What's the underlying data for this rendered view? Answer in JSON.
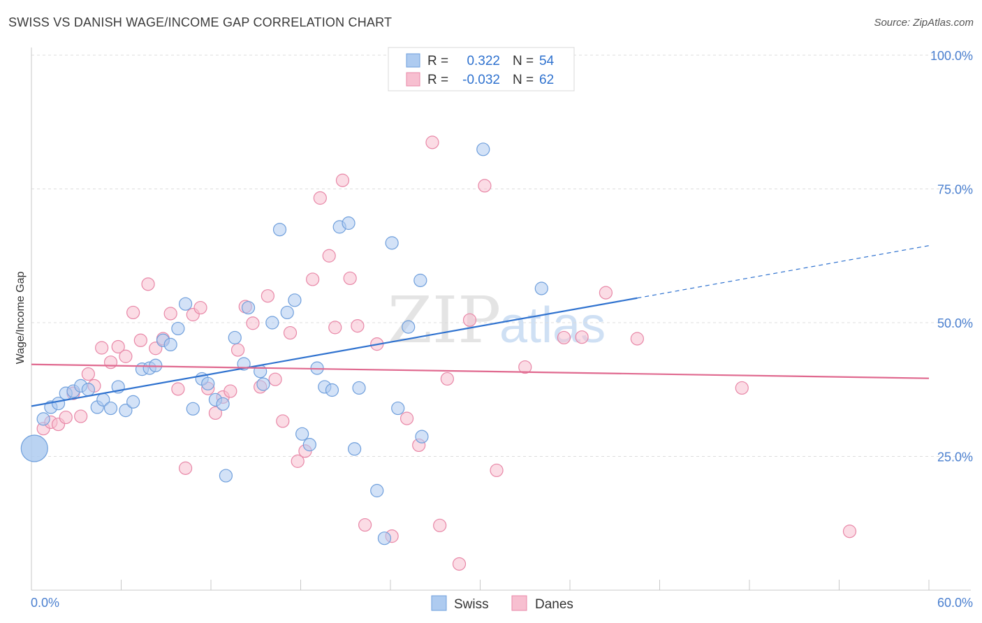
{
  "header": {
    "title": "SWISS VS DANISH WAGE/INCOME GAP CORRELATION CHART",
    "source": "Source: ZipAtlas.com"
  },
  "watermark": {
    "part1": "ZIP",
    "part2": "atlas"
  },
  "legend": {
    "swiss": {
      "r_label": "R =",
      "r_value": "0.322",
      "n_label": "N =",
      "n_value": "54"
    },
    "danes": {
      "r_label": "R =",
      "r_value": "-0.032",
      "n_label": "N =",
      "n_value": "62"
    }
  },
  "bottom_legend": {
    "swiss": "Swiss",
    "danes": "Danes"
  },
  "colors": {
    "swiss_fill": "#aecbf0",
    "swiss_stroke": "#6f9fdc",
    "swiss_line": "#2f72cf",
    "danes_fill": "#f7bfd0",
    "danes_stroke": "#e887a7",
    "danes_line": "#e0698f",
    "tick_text": "#4a7fcf"
  },
  "chart_data": {
    "type": "scatter",
    "title": "SWISS VS DANISH WAGE/INCOME GAP CORRELATION CHART",
    "xlabel": "",
    "ylabel": "Wage/Income Gap",
    "xlim": [
      0,
      60
    ],
    "ylim": [
      0,
      100
    ],
    "x_tick_labels": [
      "0.0%",
      "60.0%"
    ],
    "y_ticks": [
      25,
      50,
      75,
      100
    ],
    "y_tick_labels": [
      "25.0%",
      "50.0%",
      "75.0%",
      "100.0%"
    ],
    "grid": true,
    "legend_position": "top-center",
    "series": [
      {
        "name": "Swiss",
        "trend": {
          "x0": 0,
          "y0": 34.4,
          "x1": 40.5,
          "y1": 54.6,
          "dashed_to_x": 60,
          "dashed_to_y": 64.4
        },
        "points": [
          [
            0.2,
            26.5,
            "large"
          ],
          [
            0.8,
            32.0
          ],
          [
            1.3,
            34.2
          ],
          [
            1.8,
            34.9
          ],
          [
            2.3,
            36.8
          ],
          [
            2.8,
            37.2
          ],
          [
            3.3,
            38.2
          ],
          [
            3.8,
            37.5
          ],
          [
            4.4,
            34.2
          ],
          [
            4.8,
            35.6
          ],
          [
            5.3,
            34.0
          ],
          [
            5.8,
            38.0
          ],
          [
            6.3,
            33.6
          ],
          [
            6.8,
            35.2
          ],
          [
            7.4,
            41.3
          ],
          [
            7.9,
            41.5
          ],
          [
            8.3,
            42.0
          ],
          [
            8.8,
            46.7
          ],
          [
            9.3,
            45.9
          ],
          [
            9.8,
            48.9
          ],
          [
            10.3,
            53.5
          ],
          [
            10.8,
            33.9
          ],
          [
            11.4,
            39.5
          ],
          [
            11.8,
            38.6
          ],
          [
            12.3,
            35.6
          ],
          [
            12.8,
            34.8
          ],
          [
            13.0,
            21.4
          ],
          [
            13.6,
            47.2
          ],
          [
            14.2,
            42.3
          ],
          [
            14.5,
            52.8
          ],
          [
            15.3,
            40.9
          ],
          [
            15.5,
            38.5
          ],
          [
            16.1,
            50.0
          ],
          [
            16.6,
            67.4
          ],
          [
            17.1,
            51.9
          ],
          [
            17.6,
            54.2
          ],
          [
            18.1,
            29.2
          ],
          [
            18.6,
            27.2
          ],
          [
            19.1,
            41.5
          ],
          [
            19.6,
            38.0
          ],
          [
            20.1,
            37.4
          ],
          [
            20.6,
            67.9
          ],
          [
            21.2,
            68.6
          ],
          [
            21.6,
            26.4
          ],
          [
            21.9,
            37.8
          ],
          [
            23.1,
            18.6
          ],
          [
            23.6,
            9.7
          ],
          [
            24.1,
            64.9
          ],
          [
            24.5,
            34.0
          ],
          [
            25.2,
            49.2
          ],
          [
            26.0,
            57.9
          ],
          [
            26.1,
            28.7
          ],
          [
            30.2,
            82.4
          ],
          [
            34.1,
            56.4
          ]
        ]
      },
      {
        "name": "Danes",
        "trend": {
          "x0": 0,
          "y0": 42.2,
          "x1": 60,
          "y1": 39.6
        },
        "points": [
          [
            0.8,
            30.2
          ],
          [
            1.3,
            31.4
          ],
          [
            1.8,
            31.0
          ],
          [
            2.3,
            32.3
          ],
          [
            2.8,
            36.8
          ],
          [
            3.3,
            32.5
          ],
          [
            3.8,
            40.4
          ],
          [
            4.2,
            38.2
          ],
          [
            4.7,
            45.3
          ],
          [
            5.3,
            42.6
          ],
          [
            5.8,
            45.5
          ],
          [
            6.3,
            43.7
          ],
          [
            6.8,
            51.9
          ],
          [
            7.3,
            46.7
          ],
          [
            7.8,
            57.2
          ],
          [
            8.3,
            45.2
          ],
          [
            8.8,
            47.0
          ],
          [
            9.3,
            51.7
          ],
          [
            9.8,
            37.6
          ],
          [
            10.3,
            22.8
          ],
          [
            10.8,
            51.5
          ],
          [
            11.3,
            52.8
          ],
          [
            11.8,
            37.7
          ],
          [
            12.3,
            33.1
          ],
          [
            12.8,
            36.1
          ],
          [
            13.3,
            37.2
          ],
          [
            13.8,
            44.9
          ],
          [
            14.3,
            53.0
          ],
          [
            14.8,
            49.9
          ],
          [
            15.3,
            38.0
          ],
          [
            15.8,
            55.0
          ],
          [
            16.3,
            39.4
          ],
          [
            16.8,
            31.6
          ],
          [
            17.3,
            48.1
          ],
          [
            17.8,
            24.1
          ],
          [
            18.3,
            26.0
          ],
          [
            18.8,
            58.1
          ],
          [
            19.3,
            73.3
          ],
          [
            19.9,
            62.5
          ],
          [
            20.3,
            49.1
          ],
          [
            20.8,
            76.6
          ],
          [
            21.3,
            58.3
          ],
          [
            21.8,
            49.4
          ],
          [
            22.3,
            12.2
          ],
          [
            23.1,
            46.0
          ],
          [
            24.1,
            10.1
          ],
          [
            25.1,
            32.1
          ],
          [
            25.9,
            27.1
          ],
          [
            26.8,
            83.7
          ],
          [
            27.3,
            12.1
          ],
          [
            27.8,
            39.5
          ],
          [
            28.6,
            4.9
          ],
          [
            29.3,
            50.5
          ],
          [
            30.3,
            75.6
          ],
          [
            31.1,
            22.4
          ],
          [
            33.0,
            41.7
          ],
          [
            35.6,
            47.2
          ],
          [
            36.8,
            47.3
          ],
          [
            38.4,
            55.6
          ],
          [
            40.5,
            47.0
          ],
          [
            47.5,
            37.8
          ],
          [
            54.7,
            11.0
          ]
        ]
      }
    ]
  }
}
